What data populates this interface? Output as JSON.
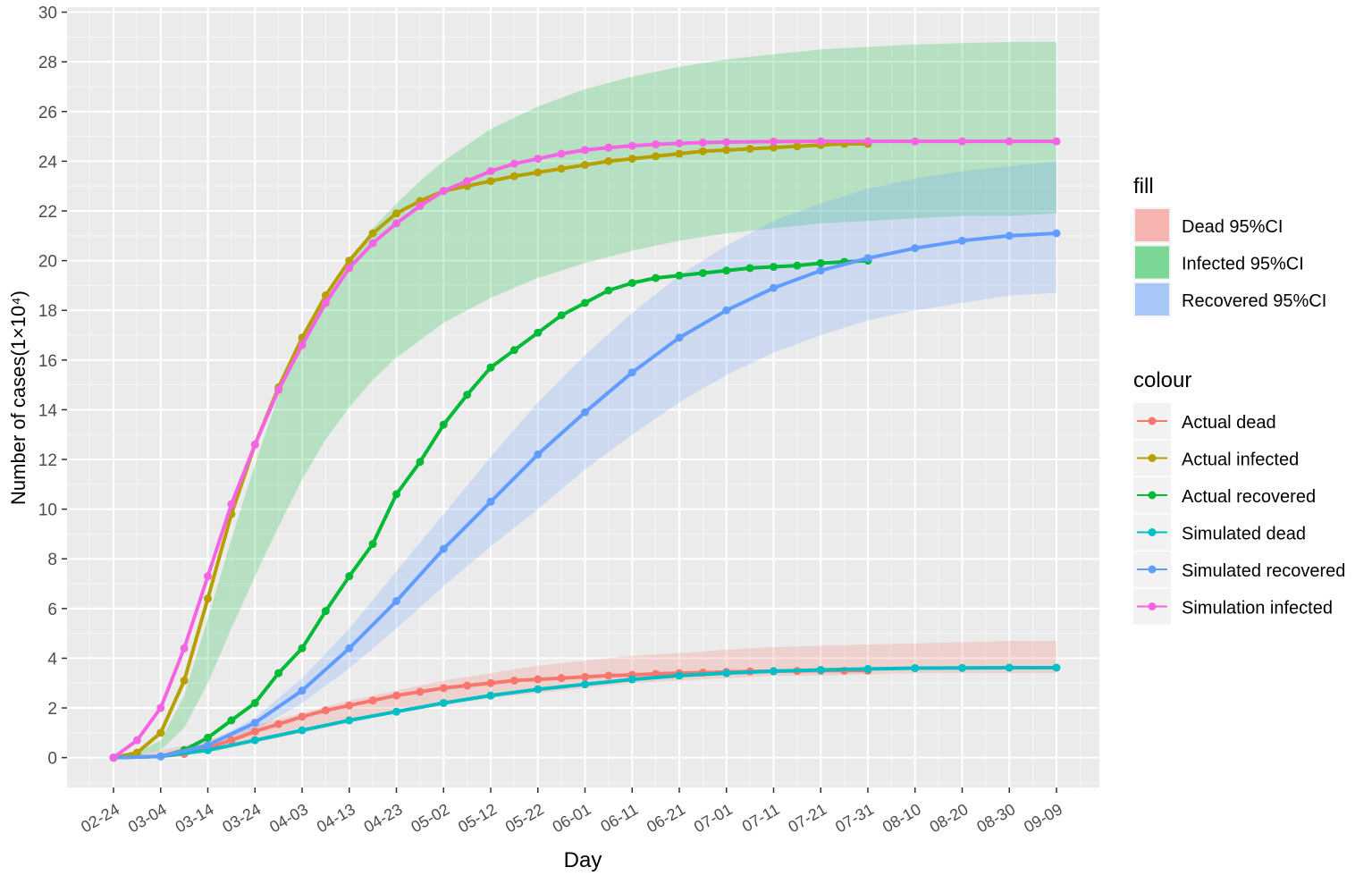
{
  "chart_data": {
    "type": "line",
    "xlabel": "Day",
    "ylabel": "Number of cases(1×10⁴)",
    "x_tick_labels": [
      "02-24",
      "03-04",
      "03-14",
      "03-24",
      "04-03",
      "04-13",
      "04-23",
      "05-02",
      "05-12",
      "05-22",
      "06-01",
      "06-11",
      "06-21",
      "07-01",
      "07-11",
      "07-21",
      "07-31",
      "08-10",
      "08-20",
      "08-30",
      "09-09"
    ],
    "y_ticks": [
      0,
      2,
      4,
      6,
      8,
      10,
      12,
      14,
      16,
      18,
      20,
      22,
      24,
      26,
      28,
      30
    ],
    "ylim": [
      -1.2,
      30.2
    ],
    "grid": true,
    "legend_position": "right",
    "legend_fill_title": "fill",
    "legend_colour_title": "colour",
    "bands": [
      {
        "name": "Dead  95%CI",
        "color": "#F8766D",
        "x": [
          0,
          5,
          10,
          20,
          30,
          40,
          50,
          60,
          70,
          80,
          90,
          100,
          110,
          120,
          130,
          140,
          150,
          160,
          170,
          180,
          190,
          200
        ],
        "lower": [
          0,
          0,
          0,
          0.2,
          0.6,
          1.0,
          1.4,
          1.8,
          2.1,
          2.4,
          2.6,
          2.8,
          3.0,
          3.1,
          3.2,
          3.3,
          3.3,
          3.35,
          3.4,
          3.4,
          3.4,
          3.4
        ],
        "upper": [
          0,
          0.1,
          0.3,
          0.7,
          1.3,
          1.8,
          2.3,
          2.7,
          3.1,
          3.4,
          3.7,
          3.9,
          4.1,
          4.2,
          4.35,
          4.45,
          4.5,
          4.55,
          4.6,
          4.65,
          4.7,
          4.7
        ]
      },
      {
        "name": "Infected 95%CI",
        "color": "#00BA38",
        "x": [
          0,
          5,
          10,
          15,
          20,
          25,
          30,
          35,
          40,
          45,
          50,
          55,
          60,
          65,
          70,
          80,
          90,
          100,
          110,
          120,
          130,
          140,
          150,
          160,
          170,
          180,
          190,
          200
        ],
        "lower": [
          0,
          0.1,
          0.3,
          1.2,
          3.0,
          5.2,
          7.3,
          9.3,
          11.2,
          12.8,
          14.1,
          15.2,
          16.1,
          16.8,
          17.5,
          18.5,
          19.3,
          19.9,
          20.4,
          20.8,
          21.1,
          21.3,
          21.5,
          21.6,
          21.7,
          21.8,
          21.8,
          21.9
        ],
        "upper": [
          0,
          0.2,
          0.7,
          2.5,
          5.6,
          8.8,
          11.8,
          14.6,
          16.8,
          18.6,
          20.0,
          21.3,
          22.3,
          23.2,
          24.0,
          25.3,
          26.2,
          26.9,
          27.4,
          27.8,
          28.1,
          28.3,
          28.5,
          28.6,
          28.7,
          28.75,
          28.8,
          28.8
        ]
      },
      {
        "name": "Recovered 95%CI",
        "color": "#619CFF",
        "x": [
          0,
          10,
          20,
          30,
          40,
          50,
          60,
          70,
          80,
          90,
          100,
          110,
          120,
          130,
          140,
          150,
          160,
          170,
          180,
          190,
          200
        ],
        "lower": [
          0,
          0,
          0.4,
          1.1,
          2.2,
          3.6,
          5.2,
          6.9,
          8.5,
          10.0,
          11.6,
          13.0,
          14.3,
          15.4,
          16.3,
          17.0,
          17.6,
          18.0,
          18.3,
          18.6,
          18.7
        ],
        "upper": [
          0,
          0.1,
          0.6,
          1.6,
          3.2,
          5.2,
          7.5,
          9.8,
          12.1,
          14.3,
          16.2,
          17.9,
          19.4,
          20.6,
          21.6,
          22.3,
          22.9,
          23.3,
          23.6,
          23.8,
          24.0
        ]
      }
    ],
    "series": [
      {
        "name": "Actual dead",
        "color": "#F8766D",
        "x": [
          0,
          10,
          15,
          20,
          25,
          30,
          35,
          40,
          45,
          50,
          55,
          60,
          65,
          70,
          75,
          80,
          85,
          90,
          95,
          100,
          105,
          110,
          115,
          120,
          125,
          130,
          135,
          140,
          145,
          150,
          155,
          160
        ],
        "y": [
          0,
          0.05,
          0.15,
          0.4,
          0.7,
          1.05,
          1.35,
          1.65,
          1.9,
          2.1,
          2.3,
          2.5,
          2.65,
          2.8,
          2.9,
          3.0,
          3.1,
          3.15,
          3.2,
          3.25,
          3.3,
          3.33,
          3.37,
          3.4,
          3.42,
          3.45,
          3.47,
          3.48,
          3.49,
          3.5,
          3.5,
          3.5
        ]
      },
      {
        "name": "Actual infected",
        "color": "#B79F00",
        "x": [
          0,
          5,
          10,
          15,
          20,
          25,
          30,
          35,
          40,
          45,
          50,
          55,
          60,
          65,
          70,
          75,
          80,
          85,
          90,
          95,
          100,
          105,
          110,
          115,
          120,
          125,
          130,
          135,
          140,
          145,
          150,
          155,
          160
        ],
        "y": [
          0,
          0.2,
          1.0,
          3.1,
          6.4,
          9.8,
          12.6,
          14.9,
          16.9,
          18.6,
          20.0,
          21.1,
          21.9,
          22.4,
          22.8,
          23.0,
          23.2,
          23.4,
          23.55,
          23.7,
          23.85,
          24.0,
          24.1,
          24.2,
          24.3,
          24.4,
          24.45,
          24.5,
          24.55,
          24.6,
          24.65,
          24.7,
          24.7
        ]
      },
      {
        "name": "Actual recovered",
        "color": "#00BA38",
        "x": [
          0,
          10,
          15,
          20,
          25,
          30,
          35,
          40,
          45,
          50,
          55,
          60,
          65,
          70,
          75,
          80,
          85,
          90,
          95,
          100,
          105,
          110,
          115,
          120,
          125,
          130,
          135,
          140,
          145,
          150,
          155,
          160
        ],
        "y": [
          0,
          0.05,
          0.3,
          0.8,
          1.5,
          2.2,
          3.4,
          4.4,
          5.9,
          7.3,
          8.6,
          10.6,
          11.9,
          13.4,
          14.6,
          15.7,
          16.4,
          17.1,
          17.8,
          18.3,
          18.8,
          19.1,
          19.3,
          19.4,
          19.5,
          19.6,
          19.7,
          19.75,
          19.8,
          19.9,
          19.95,
          20.0
        ]
      },
      {
        "name": "Simulated dead",
        "color": "#00BFC4",
        "x": [
          0,
          10,
          20,
          30,
          40,
          50,
          60,
          70,
          80,
          90,
          100,
          110,
          120,
          130,
          140,
          150,
          160,
          170,
          180,
          190,
          200
        ],
        "y": [
          0,
          0.05,
          0.3,
          0.7,
          1.1,
          1.5,
          1.85,
          2.2,
          2.5,
          2.75,
          2.95,
          3.15,
          3.3,
          3.4,
          3.48,
          3.53,
          3.57,
          3.6,
          3.61,
          3.62,
          3.62
        ]
      },
      {
        "name": "Simulated recovered",
        "color": "#619CFF",
        "x": [
          0,
          10,
          20,
          30,
          40,
          50,
          60,
          70,
          80,
          90,
          100,
          110,
          120,
          130,
          140,
          150,
          160,
          170,
          180,
          190,
          200
        ],
        "y": [
          0,
          0.05,
          0.5,
          1.4,
          2.7,
          4.4,
          6.3,
          8.4,
          10.3,
          12.2,
          13.9,
          15.5,
          16.9,
          18.0,
          18.9,
          19.6,
          20.1,
          20.5,
          20.8,
          21.0,
          21.1
        ]
      },
      {
        "name": "Simulation infected",
        "color": "#F564E3",
        "x": [
          0,
          5,
          10,
          15,
          20,
          25,
          30,
          35,
          40,
          45,
          50,
          55,
          60,
          65,
          70,
          75,
          80,
          85,
          90,
          95,
          100,
          105,
          110,
          115,
          120,
          125,
          130,
          140,
          150,
          160,
          170,
          180,
          190,
          200
        ],
        "y": [
          0,
          0.7,
          2.0,
          4.4,
          7.3,
          10.2,
          12.6,
          14.8,
          16.6,
          18.3,
          19.7,
          20.7,
          21.5,
          22.2,
          22.8,
          23.2,
          23.6,
          23.9,
          24.1,
          24.3,
          24.45,
          24.55,
          24.62,
          24.68,
          24.72,
          24.75,
          24.77,
          24.79,
          24.8,
          24.8,
          24.8,
          24.8,
          24.8,
          24.8
        ]
      }
    ]
  }
}
